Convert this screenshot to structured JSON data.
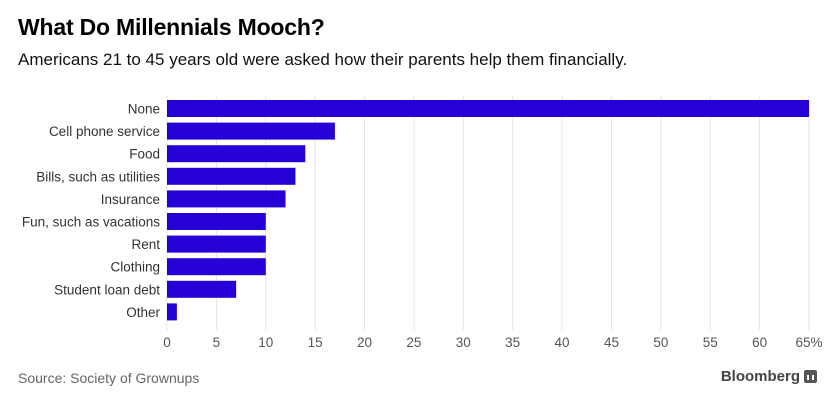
{
  "header": {
    "title": "What Do Millennials Mooch?",
    "subtitle": "Americans 21 to 45 years old were asked how their parents help them financially."
  },
  "footer": {
    "source": "Source: Society of Grownups",
    "brand": "Bloomberg"
  },
  "chart_data": {
    "type": "bar",
    "orientation": "horizontal",
    "categories": [
      "None",
      "Cell phone service",
      "Food",
      "Bills, such as utilities",
      "Insurance",
      "Fun, such as vacations",
      "Rent",
      "Clothing",
      "Student loan debt",
      "Other"
    ],
    "values": [
      65,
      17,
      14,
      13,
      12,
      10,
      10,
      10,
      7,
      1
    ],
    "xlim": [
      0,
      65
    ],
    "xticks": [
      0,
      5,
      10,
      15,
      20,
      25,
      30,
      35,
      40,
      45,
      50,
      55,
      60,
      65
    ],
    "xtick_labels": [
      "0",
      "5",
      "10",
      "15",
      "20",
      "25",
      "30",
      "35",
      "40",
      "45",
      "50",
      "55",
      "60",
      "65%"
    ],
    "grid": true,
    "bar_color": "#2600d6",
    "grid_color": "#e4e4e4"
  }
}
